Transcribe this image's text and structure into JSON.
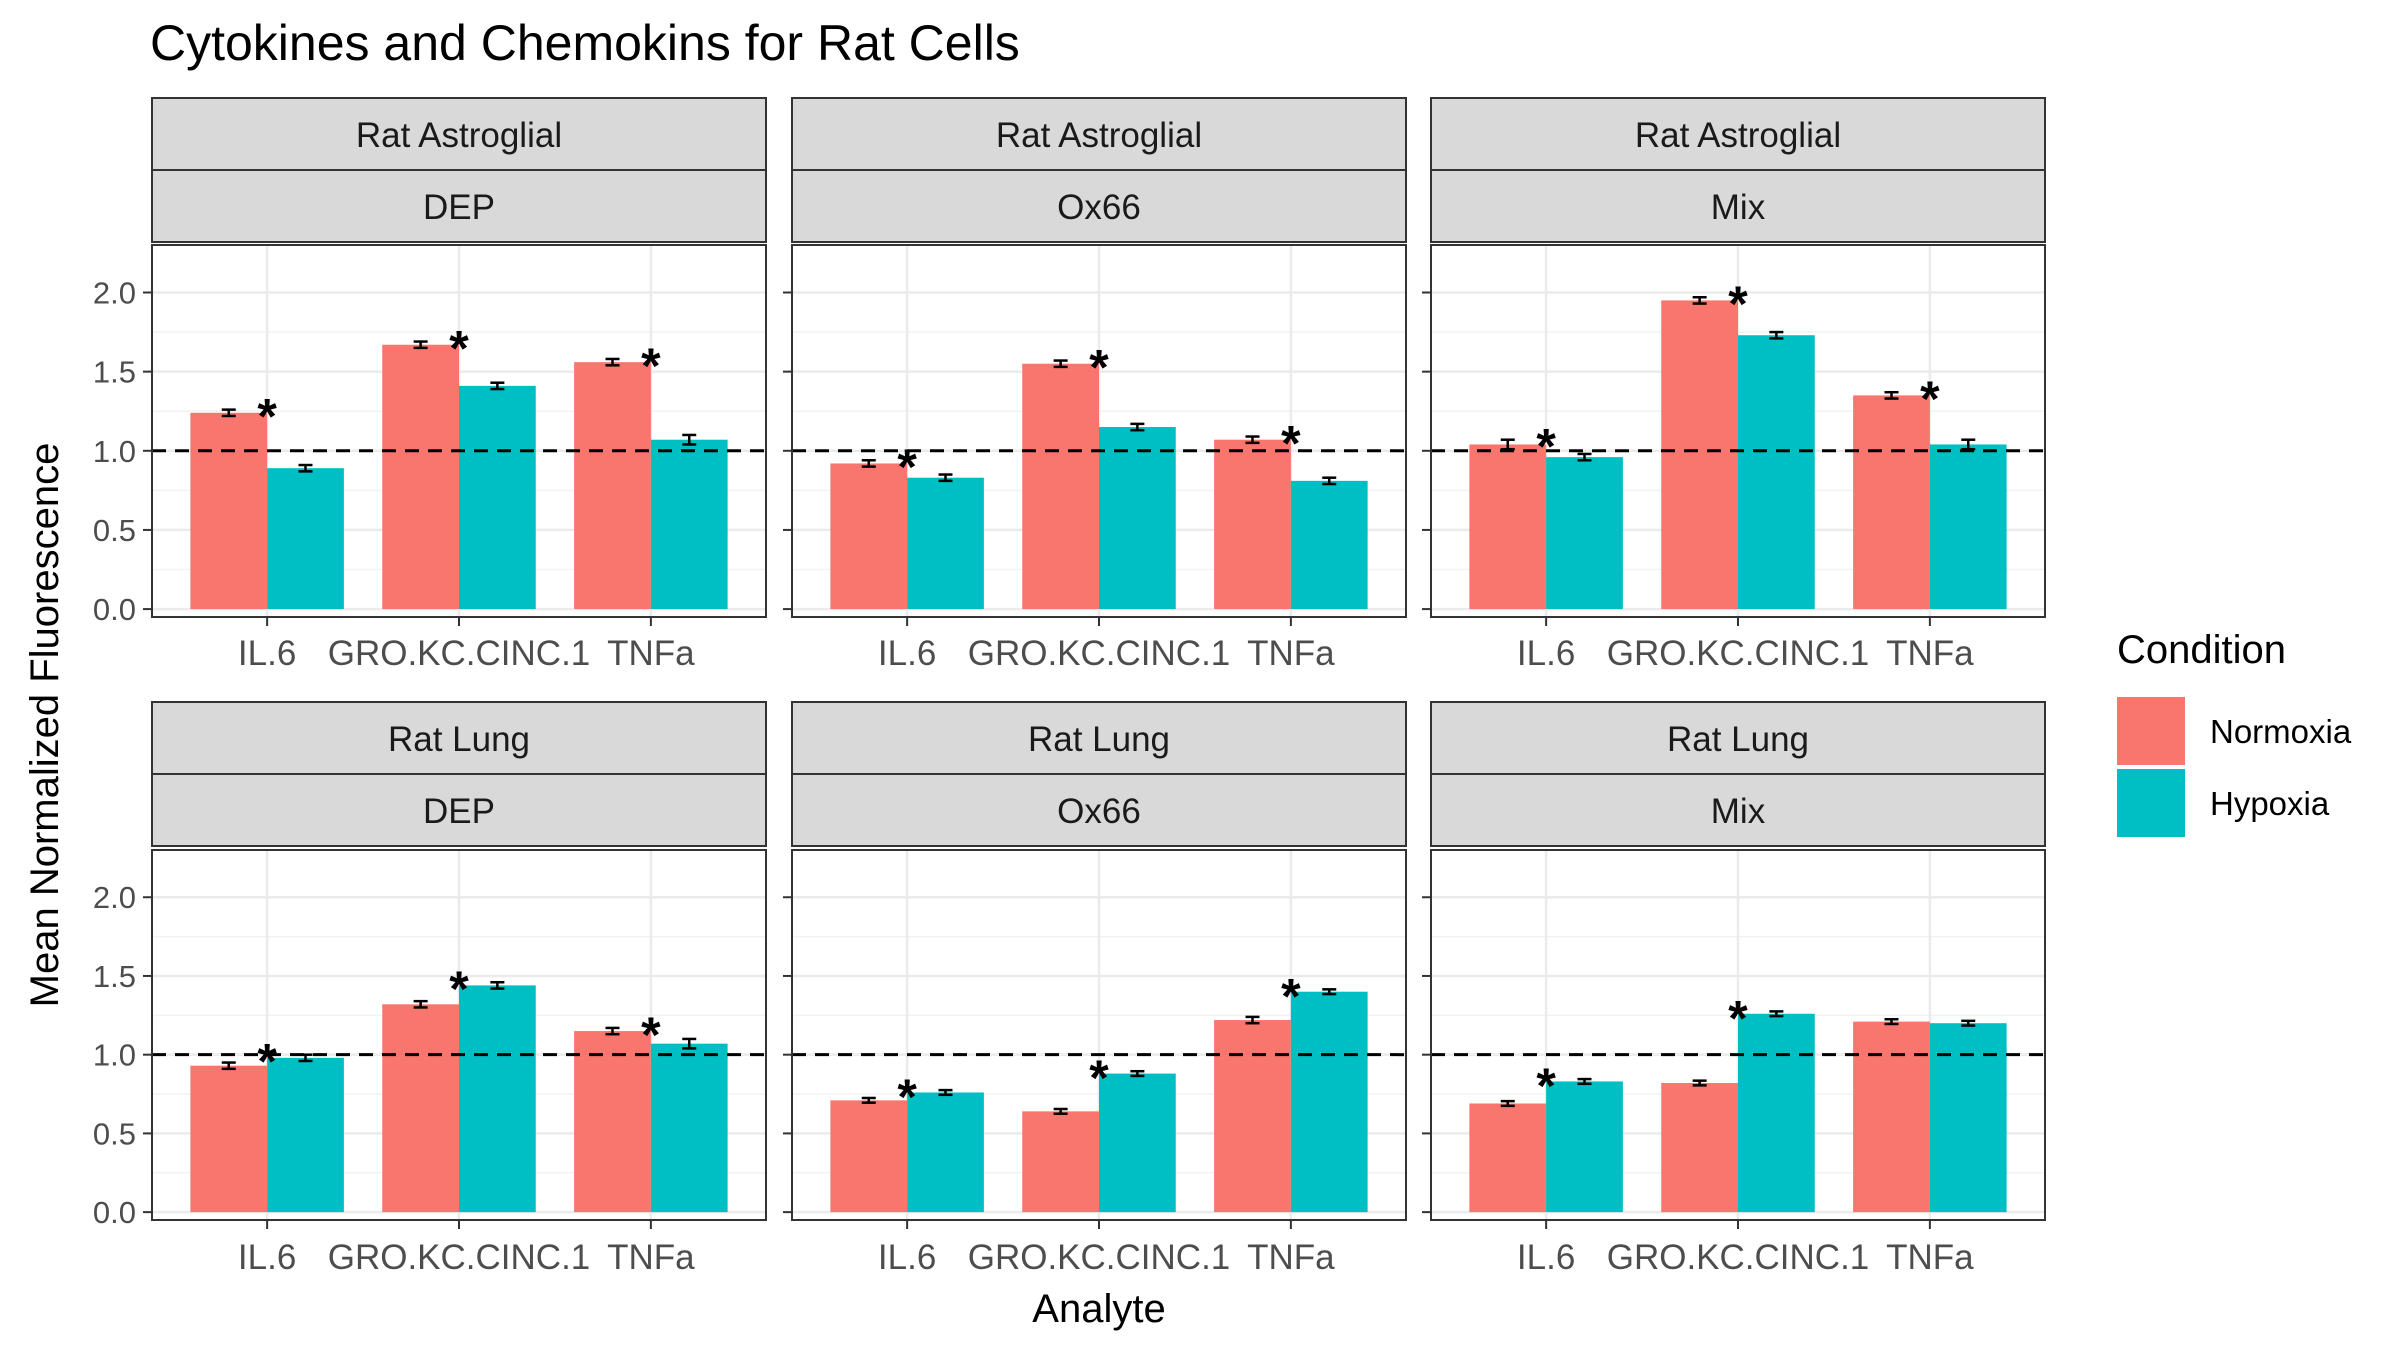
{
  "chart_data": {
    "type": "bar",
    "title": "Cytokines and Chemokins for Rat Cells",
    "xlabel": "Analyte",
    "ylabel": "Mean Normalized Fluorescence",
    "categories": [
      "IL.6",
      "GRO.KC.CINC.1",
      "TNFa"
    ],
    "ylim": [
      -0.05,
      2.3
    ],
    "yticks": [
      0.0,
      0.5,
      1.0,
      1.5,
      2.0
    ],
    "ytick_labels": [
      "0.0",
      "0.5",
      "1.0",
      "1.5",
      "2.0"
    ],
    "reference_line": 1.0,
    "grid": true,
    "legend": {
      "title": "Condition",
      "placement": "right",
      "entries": [
        {
          "name": "Normoxia",
          "color": "#F8766D"
        },
        {
          "name": "Hypoxia",
          "color": "#00BFC4"
        }
      ]
    },
    "marker_symbol": "*",
    "panels": [
      {
        "row_label": "Rat Astroglial",
        "col_label": "DEP",
        "series": [
          {
            "name": "Normoxia",
            "values": [
              1.24,
              1.67,
              1.56
            ],
            "errors": [
              0.02,
              0.02,
              0.02
            ]
          },
          {
            "name": "Hypoxia",
            "values": [
              0.89,
              1.41,
              1.07
            ],
            "errors": [
              0.02,
              0.02,
              0.03
            ]
          }
        ],
        "significant": [
          true,
          true,
          true
        ]
      },
      {
        "row_label": "Rat Astroglial",
        "col_label": "Ox66",
        "series": [
          {
            "name": "Normoxia",
            "values": [
              0.92,
              1.55,
              1.07
            ],
            "errors": [
              0.02,
              0.02,
              0.02
            ]
          },
          {
            "name": "Hypoxia",
            "values": [
              0.83,
              1.15,
              0.81
            ],
            "errors": [
              0.02,
              0.02,
              0.02
            ]
          }
        ],
        "significant": [
          true,
          true,
          true
        ]
      },
      {
        "row_label": "Rat Astroglial",
        "col_label": "Mix",
        "series": [
          {
            "name": "Normoxia",
            "values": [
              1.04,
              1.95,
              1.35
            ],
            "errors": [
              0.03,
              0.02,
              0.02
            ]
          },
          {
            "name": "Hypoxia",
            "values": [
              0.96,
              1.73,
              1.04
            ],
            "errors": [
              0.02,
              0.02,
              0.03
            ]
          }
        ],
        "significant": [
          true,
          true,
          true
        ]
      },
      {
        "row_label": "Rat Lung",
        "col_label": "DEP",
        "series": [
          {
            "name": "Normoxia",
            "values": [
              0.93,
              1.32,
              1.15
            ],
            "errors": [
              0.02,
              0.02,
              0.02
            ]
          },
          {
            "name": "Hypoxia",
            "values": [
              0.98,
              1.44,
              1.07
            ],
            "errors": [
              0.02,
              0.02,
              0.03
            ]
          }
        ],
        "significant": [
          true,
          true,
          true
        ]
      },
      {
        "row_label": "Rat Lung",
        "col_label": "Ox66",
        "series": [
          {
            "name": "Normoxia",
            "values": [
              0.71,
              0.64,
              1.22
            ],
            "errors": [
              0.015,
              0.015,
              0.02
            ]
          },
          {
            "name": "Hypoxia",
            "values": [
              0.76,
              0.88,
              1.4
            ],
            "errors": [
              0.015,
              0.015,
              0.015
            ]
          }
        ],
        "significant": [
          true,
          true,
          true
        ]
      },
      {
        "row_label": "Rat Lung",
        "col_label": "Mix",
        "series": [
          {
            "name": "Normoxia",
            "values": [
              0.69,
              0.82,
              1.21
            ],
            "errors": [
              0.015,
              0.015,
              0.015
            ]
          },
          {
            "name": "Hypoxia",
            "values": [
              0.83,
              1.26,
              1.2
            ],
            "errors": [
              0.015,
              0.015,
              0.015
            ]
          }
        ],
        "significant": [
          true,
          true,
          false
        ]
      }
    ]
  }
}
